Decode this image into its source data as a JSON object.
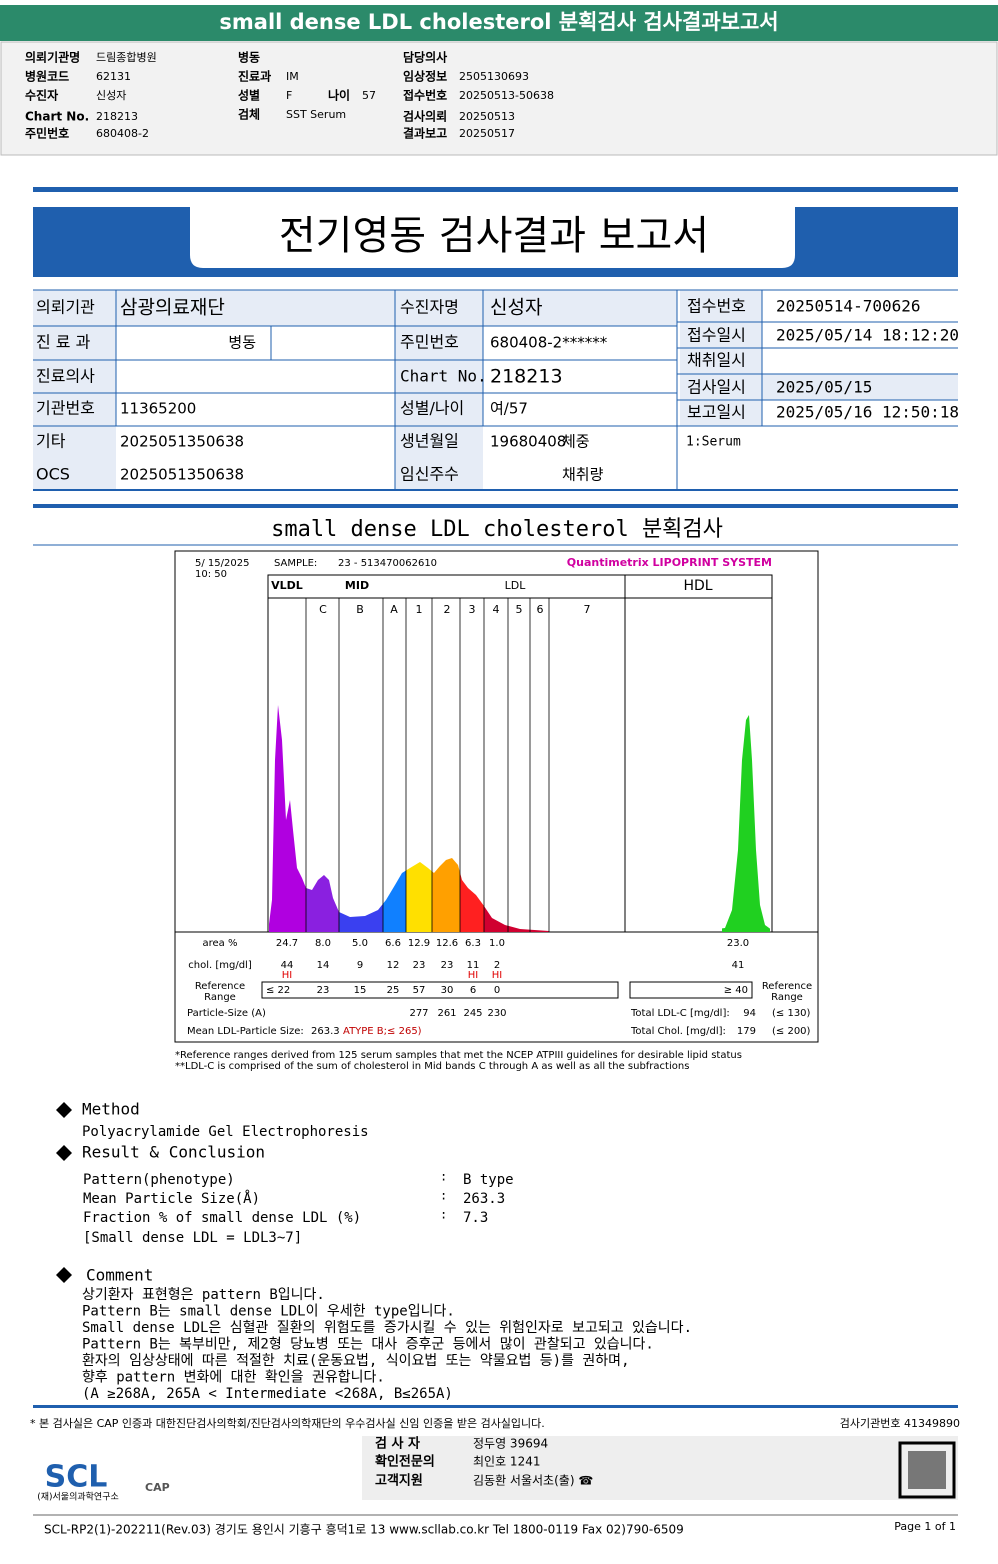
{
  "header": {
    "title": "small dense LDL cholesterol 분획검사 검사결과보고서",
    "columns": [
      [
        {
          "label": "의뢰기관명",
          "value": "드림종합병원"
        },
        {
          "label": "병원코드",
          "value": "62131"
        },
        {
          "label": "수진자",
          "value": "신성자"
        },
        {
          "label": "Chart No.",
          "value": "218213"
        },
        {
          "label": "주민번호",
          "value": "680408-2"
        }
      ],
      [
        {
          "label": "병동"
        },
        {
          "label": "진료과",
          "value": "IM"
        },
        {
          "label": "성별",
          "value": "F",
          "label2": "나이",
          "value2": "57"
        },
        {
          "label": "검체",
          "value": "SST Serum"
        }
      ],
      [
        {
          "label": "담당의사"
        },
        {
          "label": "임상정보",
          "value": "2505130693"
        },
        {
          "label": "접수번호",
          "value": "20250513-50638"
        },
        {
          "label": "검사의뢰",
          "value": "20250513"
        },
        {
          "label": "결과보고",
          "value": "20250517"
        }
      ]
    ]
  },
  "report": {
    "title": "전기영동 검사결과 보고서",
    "left": [
      {
        "label": "의뢰기관",
        "value": "삼광의료재단"
      },
      {
        "label": "진 료 과",
        "value": "병동"
      },
      {
        "label": "진료의사"
      },
      {
        "label": "기관번호",
        "value": "11365200"
      },
      {
        "label": "기타",
        "value": "2025051350638"
      },
      {
        "label": "OCS",
        "value": "2025051350638"
      }
    ],
    "middle": [
      {
        "label": "수진자명",
        "value": "신성자"
      },
      {
        "label": "주민번호",
        "value": "680408-2******"
      },
      {
        "label": "Chart No.",
        "value": "218213"
      },
      {
        "label": "성별/나이",
        "value": "여/57"
      },
      {
        "label": "생년월일",
        "value": "19680408",
        "label2": "체중"
      },
      {
        "label": "임신주수",
        "label2": "채취량"
      }
    ],
    "right": [
      {
        "label": "접수번호",
        "value": "20250514-700626"
      },
      {
        "label": "접수일시",
        "value": "2025/05/14 18:12:20"
      },
      {
        "label": "채취일시"
      },
      {
        "label": "검사일시",
        "value": "2025/05/15"
      },
      {
        "label": "보고일시",
        "value": "2025/05/16 12:50:18"
      }
    ],
    "specimen": "1:Serum"
  },
  "section_title": "small dense LDL cholesterol 분획검사",
  "lipoprint": {
    "date": "5/ 15/2025",
    "time": "10: 50",
    "sample_label": "SAMPLE:",
    "sample": "23 - 513470062610",
    "system": "Quantimetrix LIPOPRINT SYSTEM",
    "groups": [
      "VLDL",
      "MID",
      "LDL",
      "HDL"
    ],
    "bands": [
      "C",
      "B",
      "A",
      "1",
      "2",
      "3",
      "4",
      "5",
      "6",
      "7"
    ],
    "area_label": "area %",
    "area": [
      "24.7",
      "8.0",
      "5.0",
      "6.6",
      "12.9",
      "12.6",
      "6.3",
      "1.0",
      "23.0"
    ],
    "chol_label": "chol. [mg/dl]",
    "chol": [
      "44",
      "14",
      "9",
      "12",
      "23",
      "23",
      "11",
      "2",
      "41"
    ],
    "flags": [
      "HI",
      null,
      null,
      null,
      null,
      null,
      "HI",
      "HI",
      null
    ],
    "ref_label": [
      "Reference",
      "Range"
    ],
    "ref": [
      "≤ 22",
      "23",
      "15",
      "25",
      "57",
      "30",
      "6",
      "0",
      "≥ 40"
    ],
    "particle_label": "Particle-Size (A)",
    "particle": [
      "277",
      "261",
      "245",
      "230"
    ],
    "mean_label": "Mean LDL-Particle Size:",
    "mean_value": "263.3",
    "mean_type": "ATYPE B;≤ 265)",
    "totals": [
      {
        "label": "Total LDL-C [mg/dl]:",
        "value": "94",
        "ref": "(≤ 130)"
      },
      {
        "label": "Total Chol. [mg/dl]:",
        "value": "179",
        "ref": "(≤ 200)"
      }
    ],
    "footnotes": [
      "*Reference ranges derived from 125 serum samples that met the NCEP ATPIII guidelines for desirable lipid status",
      "**LDL-C is comprised of the sum of cholesterol in Mid bands C through A as well as all the subfractions"
    ]
  },
  "method": {
    "title": "Method",
    "text": "Polyacrylamide Gel Electrophoresis"
  },
  "result": {
    "title": "Result & Conclusion",
    "rows": [
      {
        "label": "Pattern(phenotype)",
        "sep": ":",
        "value": "B type"
      },
      {
        "label": "Mean Particle Size(Å)",
        "sep": ":",
        "value": "263.3"
      },
      {
        "label": "Fraction % of small dense LDL (%)",
        "sep": ":",
        "value": "7.3"
      }
    ],
    "note": "[Small dense LDL = LDL3~7]"
  },
  "comment": {
    "title": "Comment",
    "lines": [
      "상기환자 표현형은 pattern B입니다.",
      "Pattern B는 small dense LDL이 우세한 type입니다.",
      "Small dense LDL은 심혈관 질환의 위험도를 증가시킬 수 있는 위험인자로 보고되고 있습니다.",
      "Pattern B는 복부비만, 제2형 당뇨병 또는 대사 증후군 등에서 많이 관찰되고 있습니다.",
      "환자의 임상상태에 따른 적절한 치료(운동요법, 식이요법 또는 약물요법 등)를 권하며,",
      "향후 pattern 변화에 대한 확인을 권유합니다.",
      "(A ≥268A, 265A < Intermediate <268A, B≤265A)"
    ]
  },
  "footer": {
    "disclaimer": "* 본 검사실은 CAP 인증과 대한진단검사의학회/진단검사의학재단의 우수검사실 신임 인증을 받은 검사실입니다.",
    "lab_no": "검사기관번호 41349890",
    "staff": [
      {
        "role": "검 사 자",
        "name": "정두영 39694"
      },
      {
        "role": "확인전문의",
        "name": "최인호 1241"
      },
      {
        "role": "고객지원",
        "name": "김동환 서울서초(출) ☎"
      }
    ],
    "logo": "SCL",
    "org": "(재)서울의과학연구소",
    "cert": "CAP",
    "address": "SCL-RP2(1)-202211(Rev.03)  경기도 용인시 기흥구 흥덕1로 13  www.scllab.co.kr  Tel 1800-0119  Fax 02)790-6509",
    "page": "Page 1 of 1"
  }
}
